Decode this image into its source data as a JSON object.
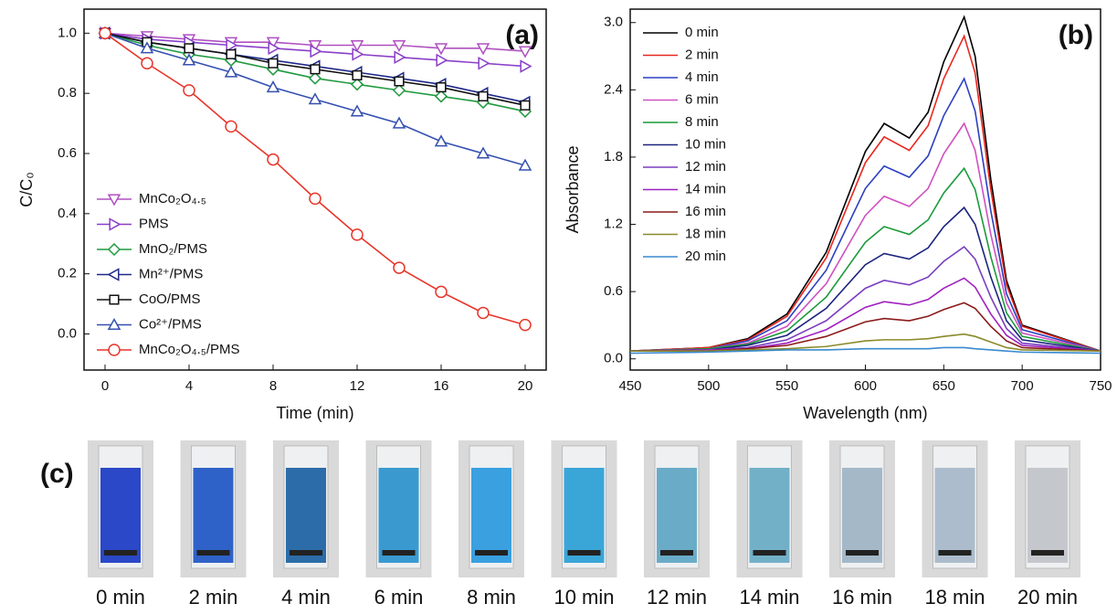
{
  "chart_data": [
    {
      "type": "line",
      "panel_label": "(a)",
      "x_label": "Time (min)",
      "y_label": "C/C₀",
      "x": [
        0,
        2,
        4,
        6,
        8,
        10,
        12,
        14,
        16,
        18,
        20
      ],
      "xlim": [
        -1,
        21
      ],
      "xticks": [
        0,
        4,
        8,
        12,
        16,
        20
      ],
      "ylim": [
        -0.12,
        1.08
      ],
      "yticks": [
        {
          "value": 0,
          "label": "0.0"
        },
        0.2,
        0.4,
        0.6,
        0.8,
        {
          "value": 1,
          "label": "1.0"
        }
      ],
      "legend": "lower left",
      "series": [
        {
          "name": "MnCo₂O₄.₅",
          "color": "#b050c0",
          "marker": "tri-down",
          "values": [
            1.0,
            0.99,
            0.98,
            0.97,
            0.97,
            0.96,
            0.96,
            0.96,
            0.95,
            0.95,
            0.94
          ]
        },
        {
          "name": "PMS",
          "color": "#8a3fc8",
          "marker": "tri-right",
          "values": [
            1.0,
            0.98,
            0.97,
            0.96,
            0.95,
            0.94,
            0.93,
            0.92,
            0.91,
            0.9,
            0.89
          ]
        },
        {
          "name": "MnO₂/PMS",
          "color": "#1f9a3f",
          "marker": "diamond",
          "values": [
            1.0,
            0.96,
            0.93,
            0.91,
            0.88,
            0.85,
            0.83,
            0.81,
            0.79,
            0.77,
            0.74
          ]
        },
        {
          "name": "Mn²⁺/PMS",
          "color": "#1f2a8a",
          "marker": "tri-left",
          "values": [
            1.0,
            0.97,
            0.95,
            0.93,
            0.91,
            0.89,
            0.87,
            0.85,
            0.83,
            0.8,
            0.77
          ]
        },
        {
          "name": "CoO/PMS",
          "color": "#111111",
          "marker": "square",
          "values": [
            1.0,
            0.97,
            0.95,
            0.93,
            0.9,
            0.88,
            0.86,
            0.84,
            0.82,
            0.79,
            0.76
          ]
        },
        {
          "name": "Co²⁺/PMS",
          "color": "#3550b0",
          "marker": "tri-up",
          "values": [
            1.0,
            0.95,
            0.91,
            0.87,
            0.82,
            0.78,
            0.74,
            0.7,
            0.64,
            0.6,
            0.56
          ]
        },
        {
          "name": "MnCo₂O₄.₅/PMS",
          "color": "#e8352a",
          "marker": "circle",
          "values": [
            1.0,
            0.9,
            0.81,
            0.69,
            0.58,
            0.45,
            0.33,
            0.22,
            0.14,
            0.07,
            0.03
          ]
        }
      ]
    },
    {
      "type": "line",
      "panel_label": "(b)",
      "x_label": "Wavelength (nm)",
      "y_label": "Absorbance",
      "x": [
        450,
        500,
        525,
        550,
        575,
        600,
        612,
        628,
        640,
        650,
        663,
        670,
        680,
        690,
        700,
        750
      ],
      "xlim": [
        450,
        750
      ],
      "xticks": [
        450,
        500,
        550,
        600,
        650,
        700,
        750
      ],
      "ylim": [
        -0.1,
        3.12
      ],
      "yticks": [
        {
          "value": 0,
          "label": "0.0"
        },
        0.6,
        1.2,
        1.8,
        2.4,
        {
          "value": 3,
          "label": "3.0"
        }
      ],
      "legend": "upper left",
      "series": [
        {
          "name": "0 min",
          "color": "#000000",
          "values": [
            0.07,
            0.1,
            0.18,
            0.4,
            0.95,
            1.85,
            2.1,
            1.97,
            2.2,
            2.65,
            3.05,
            2.7,
            1.6,
            0.7,
            0.3,
            0.07
          ]
        },
        {
          "name": "2 min",
          "color": "#e8271e",
          "values": [
            0.07,
            0.1,
            0.17,
            0.38,
            0.9,
            1.75,
            1.98,
            1.86,
            2.08,
            2.5,
            2.88,
            2.55,
            1.51,
            0.66,
            0.29,
            0.07
          ]
        },
        {
          "name": "4 min",
          "color": "#2a40c0",
          "values": [
            0.07,
            0.09,
            0.16,
            0.34,
            0.79,
            1.52,
            1.72,
            1.62,
            1.81,
            2.17,
            2.5,
            2.21,
            1.32,
            0.58,
            0.26,
            0.07
          ]
        },
        {
          "name": "6 min",
          "color": "#d050c0",
          "values": [
            0.07,
            0.09,
            0.14,
            0.29,
            0.67,
            1.28,
            1.45,
            1.36,
            1.52,
            1.83,
            2.1,
            1.86,
            1.11,
            0.5,
            0.23,
            0.07
          ]
        },
        {
          "name": "8 min",
          "color": "#1a9a3a",
          "values": [
            0.07,
            0.09,
            0.13,
            0.25,
            0.55,
            1.04,
            1.18,
            1.11,
            1.24,
            1.48,
            1.7,
            1.51,
            0.91,
            0.41,
            0.2,
            0.07
          ]
        },
        {
          "name": "10 min",
          "color": "#1a237e",
          "values": [
            0.07,
            0.08,
            0.12,
            0.21,
            0.45,
            0.84,
            0.94,
            0.89,
            0.99,
            1.18,
            1.35,
            1.2,
            0.73,
            0.34,
            0.17,
            0.07
          ]
        },
        {
          "name": "12 min",
          "color": "#7b3fbf",
          "values": [
            0.07,
            0.08,
            0.1,
            0.17,
            0.34,
            0.63,
            0.7,
            0.66,
            0.73,
            0.87,
            1.0,
            0.89,
            0.55,
            0.27,
            0.14,
            0.07
          ]
        },
        {
          "name": "14 min",
          "color": "#a020c0",
          "values": [
            0.07,
            0.08,
            0.09,
            0.14,
            0.26,
            0.46,
            0.51,
            0.48,
            0.53,
            0.63,
            0.72,
            0.64,
            0.4,
            0.21,
            0.12,
            0.07
          ]
        },
        {
          "name": "16 min",
          "color": "#8b1a1a",
          "values": [
            0.07,
            0.07,
            0.09,
            0.12,
            0.2,
            0.33,
            0.36,
            0.34,
            0.38,
            0.44,
            0.5,
            0.45,
            0.29,
            0.16,
            0.1,
            0.07
          ]
        },
        {
          "name": "18 min",
          "color": "#8a8a2a",
          "values": [
            0.07,
            0.07,
            0.08,
            0.09,
            0.11,
            0.16,
            0.17,
            0.17,
            0.18,
            0.2,
            0.22,
            0.2,
            0.15,
            0.1,
            0.08,
            0.07
          ]
        },
        {
          "name": "20 min",
          "color": "#3a8ad0",
          "values": [
            0.05,
            0.06,
            0.07,
            0.08,
            0.08,
            0.09,
            0.09,
            0.09,
            0.09,
            0.1,
            0.1,
            0.09,
            0.08,
            0.07,
            0.06,
            0.05
          ]
        }
      ]
    }
  ],
  "panel_c": {
    "label": "(c)",
    "captions": [
      "0 min",
      "2 min",
      "4 min",
      "6 min",
      "8 min",
      "10 min",
      "12 min",
      "14 min",
      "16 min",
      "18 min",
      "20 min"
    ],
    "colors": [
      "#2a48c8",
      "#2f62c8",
      "#2c6ca8",
      "#3a9ad0",
      "#3aa0e0",
      "#3aa6d8",
      "#6aacc8",
      "#72b0c8",
      "#a4b8c8",
      "#acbccc",
      "#c4c8cc"
    ]
  }
}
